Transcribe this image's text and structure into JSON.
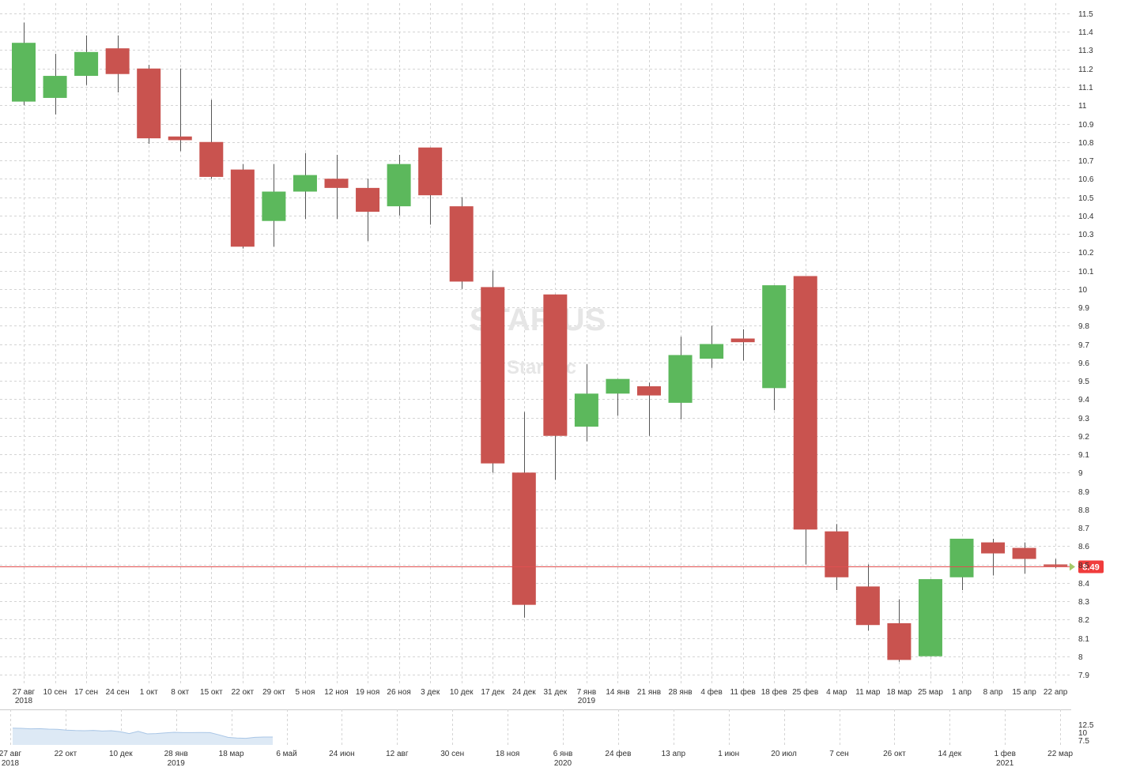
{
  "chart_data": {
    "type": "candlestick",
    "title": "",
    "watermark": {
      "ticker": "STAR US",
      "name": "Star Inc"
    },
    "colors": {
      "up": "#5cb85c",
      "down": "#c9534f",
      "price_line": "#e05050",
      "price_tag": "#f03c3c",
      "navigator_fill": "#dde9f5",
      "navigator_line": "#a9c6e6"
    },
    "ylim": [
      7.85,
      11.55
    ],
    "y_ticks": [
      "7.9",
      "8",
      "8.1",
      "8.2",
      "8.3",
      "8.4",
      "8.5",
      "8.6",
      "8.7",
      "8.8",
      "8.9",
      "9",
      "9.1",
      "9.2",
      "9.3",
      "9.4",
      "9.5",
      "9.6",
      "9.7",
      "9.8",
      "9.9",
      "10",
      "10.1",
      "10.2",
      "10.3",
      "10.4",
      "10.5",
      "10.6",
      "10.7",
      "10.8",
      "10.9",
      "11",
      "11.1",
      "11.2",
      "11.3",
      "11.4",
      "11.5"
    ],
    "last_price": "8.49",
    "categories": [
      "27 авг",
      "10 сен",
      "17 сен",
      "24 сен",
      "1 окт",
      "8 окт",
      "15 окт",
      "22 окт",
      "29 окт",
      "5 ноя",
      "12 ноя",
      "19 ноя",
      "26 ноя",
      "3 дек",
      "10 дек",
      "17 дек",
      "24 дек",
      "31 дек",
      "7 янв",
      "14 янв",
      "21 янв",
      "28 янв",
      "4 фев",
      "11 фев",
      "18 фев",
      "25 фев",
      "4 мар",
      "11 мар",
      "18 мар",
      "25 мар",
      "1 апр",
      "8 апр",
      "15 апр",
      "22 апр"
    ],
    "x_years": [
      {
        "index": 0,
        "label": "2018"
      },
      {
        "index": 18,
        "label": "2019"
      }
    ],
    "ohlc": [
      [
        11.02,
        11.45,
        11.0,
        11.34
      ],
      [
        11.04,
        11.28,
        10.95,
        11.16
      ],
      [
        11.16,
        11.38,
        11.11,
        11.29
      ],
      [
        11.31,
        11.38,
        11.07,
        11.17
      ],
      [
        11.2,
        11.22,
        10.79,
        10.82
      ],
      [
        10.83,
        11.2,
        10.75,
        10.81
      ],
      [
        10.8,
        11.03,
        10.6,
        10.61
      ],
      [
        10.65,
        10.68,
        10.22,
        10.23
      ],
      [
        10.37,
        10.68,
        10.23,
        10.53
      ],
      [
        10.53,
        10.74,
        10.38,
        10.62
      ],
      [
        10.6,
        10.73,
        10.38,
        10.55
      ],
      [
        10.55,
        10.6,
        10.26,
        10.42
      ],
      [
        10.45,
        10.73,
        10.4,
        10.68
      ],
      [
        10.77,
        10.77,
        10.35,
        10.51
      ],
      [
        10.45,
        10.5,
        10.0,
        10.04
      ],
      [
        10.01,
        10.1,
        9.0,
        9.05
      ],
      [
        9.0,
        9.33,
        8.21,
        8.28
      ],
      [
        9.97,
        9.97,
        8.96,
        9.2
      ],
      [
        9.25,
        9.59,
        9.17,
        9.43
      ],
      [
        9.43,
        9.51,
        9.31,
        9.51
      ],
      [
        9.47,
        9.49,
        9.2,
        9.42
      ],
      [
        9.38,
        9.74,
        9.29,
        9.64
      ],
      [
        9.62,
        9.8,
        9.57,
        9.7
      ],
      [
        9.73,
        9.78,
        9.61,
        9.71
      ],
      [
        9.46,
        10.02,
        9.34,
        10.02
      ],
      [
        10.07,
        10.07,
        8.5,
        8.69
      ],
      [
        8.68,
        8.72,
        8.36,
        8.43
      ],
      [
        8.38,
        8.5,
        8.14,
        8.17
      ],
      [
        8.18,
        8.31,
        7.97,
        7.98
      ],
      [
        8.0,
        8.42,
        8.0,
        8.42
      ],
      [
        8.43,
        8.64,
        8.36,
        8.64
      ],
      [
        8.62,
        8.64,
        8.44,
        8.56
      ],
      [
        8.59,
        8.62,
        8.45,
        8.53
      ],
      [
        8.5,
        8.53,
        8.48,
        8.49
      ]
    ],
    "navigator": {
      "y_ticks": [
        "12.5",
        "10",
        "7.5"
      ],
      "x_ticks": [
        "27 авг",
        "22 окт",
        "10 дек",
        "28 янв",
        "18 мар",
        "6 май",
        "24 июн",
        "12 авг",
        "30 сен",
        "18 ноя",
        "6 янв",
        "24 фев",
        "13 апр",
        "1 июн",
        "20 июл",
        "7 сен",
        "26 окт",
        "14 дек",
        "1 фев",
        "22 мар"
      ],
      "x_years": [
        {
          "tick": 0,
          "label": "2018"
        },
        {
          "tick": 3,
          "label": "2019"
        },
        {
          "tick": 10,
          "label": "2020"
        },
        {
          "tick": 18,
          "label": "2021"
        }
      ],
      "series": [
        11.3,
        11.25,
        11.1,
        11.15,
        11.0,
        10.95,
        10.7,
        10.55,
        10.5,
        10.6,
        10.4,
        10.5,
        10.2,
        9.6,
        10.3,
        9.5,
        9.6,
        9.8,
        10.0,
        9.9,
        9.9,
        9.95,
        9.9,
        9.2,
        8.4,
        8.2,
        8.1,
        8.4,
        8.5,
        8.5
      ]
    }
  }
}
